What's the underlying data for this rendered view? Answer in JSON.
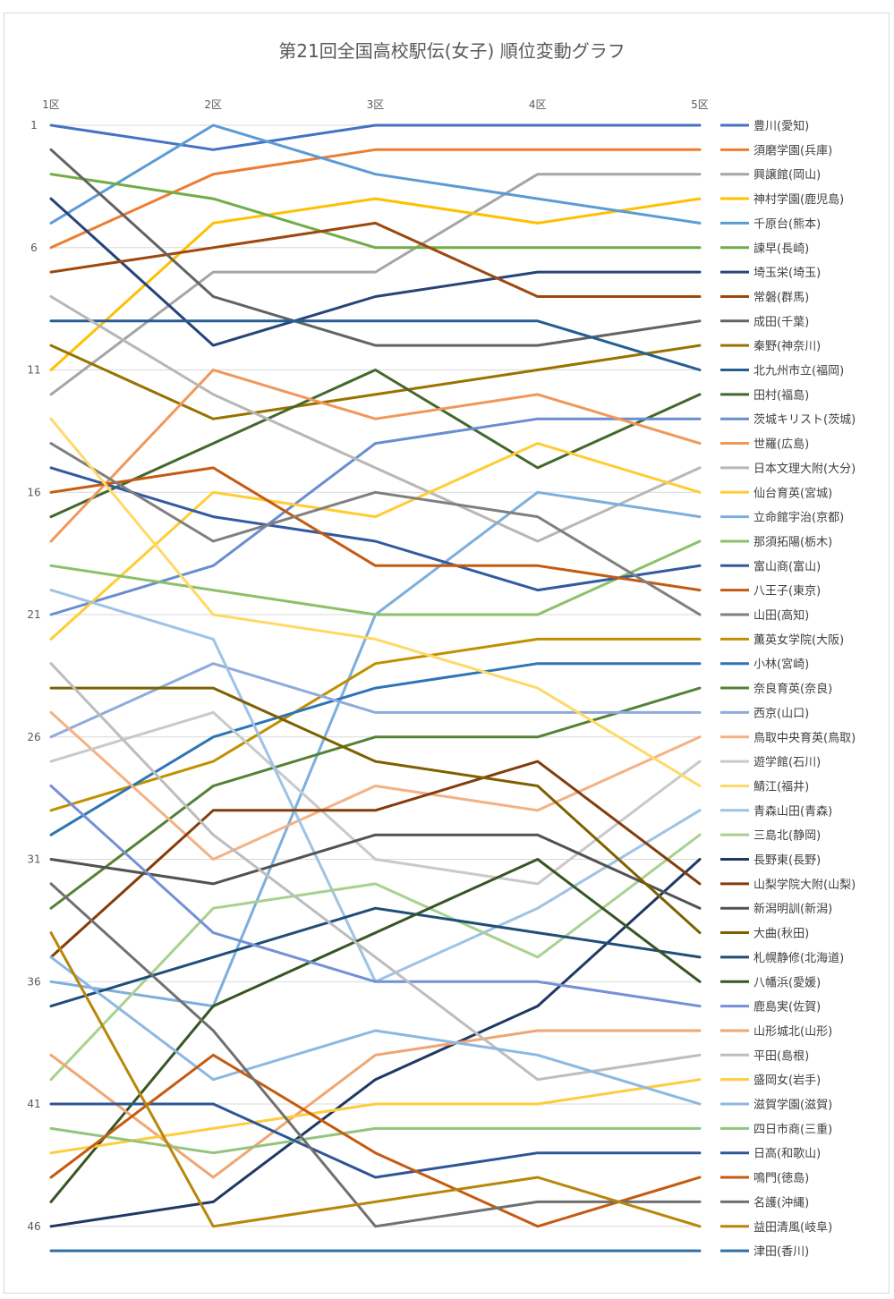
{
  "chart_data": {
    "type": "line",
    "title": "第21回全国高校駅伝(女子) 順位変動グラフ",
    "categories": [
      "1区",
      "2区",
      "3区",
      "4区",
      "5区"
    ],
    "y_ticks": [
      1,
      6,
      11,
      16,
      21,
      26,
      31,
      36,
      41,
      46
    ],
    "ylim": [
      1,
      47
    ],
    "y_reversed": true,
    "grid": true,
    "legend_position": "right",
    "series": [
      {
        "name": "豊川(愛知)",
        "color": "#4472C4",
        "values": [
          1,
          2,
          1,
          1,
          1
        ]
      },
      {
        "name": "須磨学園(兵庫)",
        "color": "#ED7D31",
        "values": [
          6,
          3,
          2,
          2,
          2
        ]
      },
      {
        "name": "興譲館(岡山)",
        "color": "#A5A5A5",
        "values": [
          12,
          7,
          7,
          3,
          3
        ]
      },
      {
        "name": "神村学園(鹿児島)",
        "color": "#FFC000",
        "values": [
          11,
          5,
          4,
          5,
          4
        ]
      },
      {
        "name": "千原台(熊本)",
        "color": "#5B9BD5",
        "values": [
          5,
          1,
          3,
          4,
          5
        ]
      },
      {
        "name": "諫早(長崎)",
        "color": "#70AD47",
        "values": [
          3,
          4,
          6,
          6,
          6
        ]
      },
      {
        "name": "埼玉栄(埼玉)",
        "color": "#264478",
        "values": [
          4,
          10,
          8,
          7,
          7
        ]
      },
      {
        "name": "常磐(群馬)",
        "color": "#9E480E",
        "values": [
          7,
          6,
          5,
          8,
          8
        ]
      },
      {
        "name": "成田(千葉)",
        "color": "#636363",
        "values": [
          2,
          8,
          10,
          10,
          9
        ]
      },
      {
        "name": "秦野(神奈川)",
        "color": "#997300",
        "values": [
          10,
          13,
          12,
          11,
          10
        ]
      },
      {
        "name": "北九州市立(福岡)",
        "color": "#255E91",
        "values": [
          9,
          9,
          9,
          9,
          11
        ]
      },
      {
        "name": "田村(福島)",
        "color": "#43682B",
        "values": [
          17,
          14,
          11,
          15,
          12
        ]
      },
      {
        "name": "茨城キリスト(茨城)",
        "color": "#698ED0",
        "values": [
          21,
          19,
          14,
          13,
          13
        ]
      },
      {
        "name": "世羅(広島)",
        "color": "#F1975A",
        "values": [
          18,
          11,
          13,
          12,
          14
        ]
      },
      {
        "name": "日本文理大附(大分)",
        "color": "#B7B7B7",
        "values": [
          8,
          12,
          15,
          18,
          15
        ]
      },
      {
        "name": "仙台育英(宮城)",
        "color": "#FFCD33",
        "values": [
          22,
          16,
          17,
          14,
          16
        ]
      },
      {
        "name": "立命館宇治(京都)",
        "color": "#7CAFDD",
        "values": [
          36,
          37,
          21,
          16,
          17
        ]
      },
      {
        "name": "那須拓陽(栃木)",
        "color": "#8CC168",
        "values": [
          19,
          20,
          21,
          21,
          18
        ]
      },
      {
        "name": "富山商(富山)",
        "color": "#335AA1",
        "values": [
          15,
          17,
          18,
          20,
          19
        ]
      },
      {
        "name": "八王子(東京)",
        "color": "#C55A11",
        "values": [
          16,
          15,
          19,
          19,
          20
        ]
      },
      {
        "name": "山田(高知)",
        "color": "#7F7F7F",
        "values": [
          14,
          18,
          16,
          17,
          21
        ]
      },
      {
        "name": "薫英女学院(大阪)",
        "color": "#BF9000",
        "values": [
          29,
          27,
          23,
          22,
          22
        ]
      },
      {
        "name": "小林(宮崎)",
        "color": "#2E75B6",
        "values": [
          30,
          26,
          24,
          23,
          23
        ]
      },
      {
        "name": "奈良育英(奈良)",
        "color": "#548235",
        "values": [
          33,
          28,
          26,
          26,
          24
        ]
      },
      {
        "name": "西京(山口)",
        "color": "#8FAADC",
        "values": [
          26,
          23,
          25,
          25,
          25
        ]
      },
      {
        "name": "鳥取中央育英(鳥取)",
        "color": "#F4B183",
        "values": [
          25,
          31,
          28,
          29,
          26
        ]
      },
      {
        "name": "遊学館(石川)",
        "color": "#C9C9C9",
        "values": [
          27,
          25,
          31,
          32,
          27
        ]
      },
      {
        "name": "鯖江(福井)",
        "color": "#FFD966",
        "values": [
          13,
          21,
          22,
          24,
          28
        ]
      },
      {
        "name": "青森山田(青森)",
        "color": "#9DC3E6",
        "values": [
          20,
          22,
          36,
          33,
          29
        ]
      },
      {
        "name": "三島北(静岡)",
        "color": "#A9D18E",
        "values": [
          40,
          33,
          32,
          35,
          30
        ]
      },
      {
        "name": "長野東(長野)",
        "color": "#203864",
        "values": [
          46,
          45,
          40,
          37,
          31
        ]
      },
      {
        "name": "山梨学院大附(山梨)",
        "color": "#843C0C",
        "values": [
          35,
          29,
          29,
          27,
          32
        ]
      },
      {
        "name": "新潟明訓(新潟)",
        "color": "#525252",
        "values": [
          31,
          32,
          30,
          30,
          33
        ]
      },
      {
        "name": "大曲(秋田)",
        "color": "#7F6000",
        "values": [
          24,
          24,
          27,
          28,
          34
        ]
      },
      {
        "name": "札幌静修(北海道)",
        "color": "#1F4E79",
        "values": [
          37,
          35,
          33,
          34,
          35
        ]
      },
      {
        "name": "八幡浜(愛媛)",
        "color": "#375623",
        "values": [
          45,
          37,
          34,
          31,
          36
        ]
      },
      {
        "name": "鹿島実(佐賀)",
        "color": "#7391D4",
        "values": [
          28,
          34,
          36,
          36,
          37
        ]
      },
      {
        "name": "山形城北(山形)",
        "color": "#F0A672",
        "values": [
          39,
          44,
          39,
          38,
          38
        ]
      },
      {
        "name": "平田(島根)",
        "color": "#BDBDBD",
        "values": [
          23,
          30,
          35,
          40,
          39
        ]
      },
      {
        "name": "盛岡女(岩手)",
        "color": "#FFCC40",
        "values": [
          43,
          42,
          41,
          41,
          40
        ]
      },
      {
        "name": "滋賀学園(滋賀)",
        "color": "#8DB8E2",
        "values": [
          35,
          40,
          38,
          39,
          41
        ]
      },
      {
        "name": "四日市商(三重)",
        "color": "#93C47D",
        "values": [
          42,
          43,
          42,
          42,
          42
        ]
      },
      {
        "name": "日高(和歌山)",
        "color": "#2F5597",
        "values": [
          41,
          41,
          44,
          43,
          43
        ]
      },
      {
        "name": "鳴門(徳島)",
        "color": "#C55A11",
        "values": [
          44,
          39,
          43,
          46,
          44
        ]
      },
      {
        "name": "名護(沖縄)",
        "color": "#707070",
        "values": [
          32,
          38,
          46,
          45,
          45
        ]
      },
      {
        "name": "益田清風(岐阜)",
        "color": "#B8860B",
        "values": [
          34,
          46,
          45,
          44,
          46
        ]
      },
      {
        "name": "津田(香川)",
        "color": "#2E6FA7",
        "values": [
          47,
          47,
          47,
          47,
          47
        ]
      }
    ]
  }
}
